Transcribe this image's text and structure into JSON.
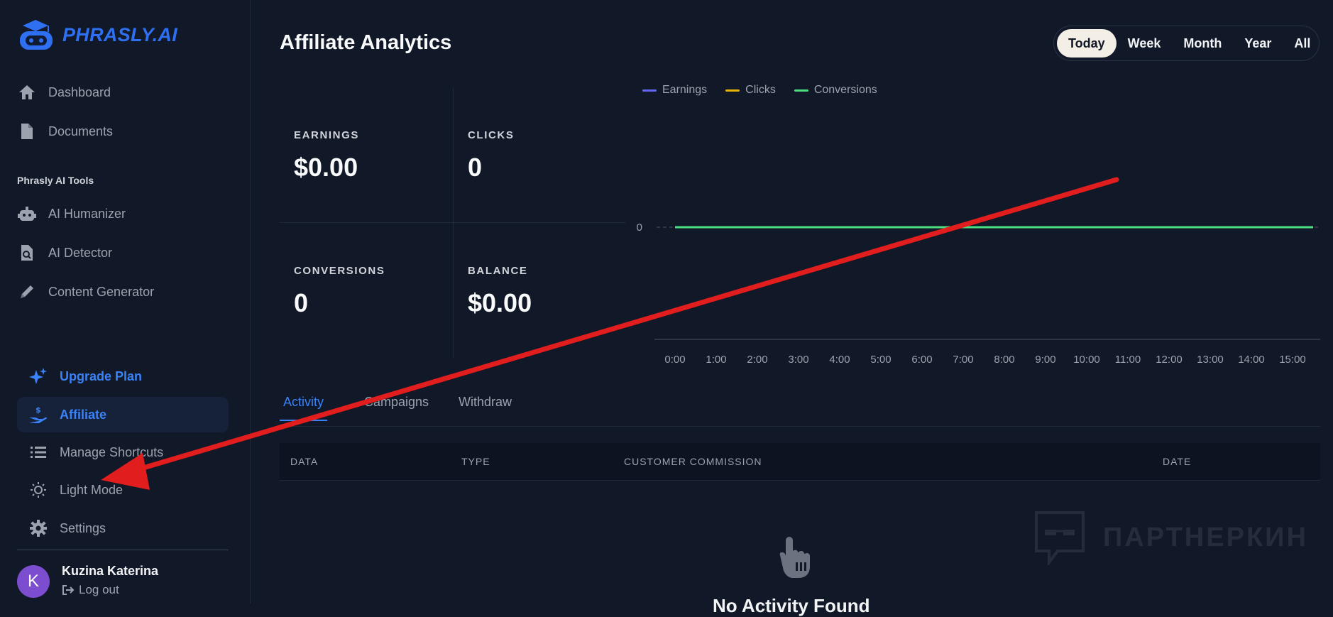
{
  "brand": {
    "name": "PHRASLY.AI",
    "icon": "robot-graduate-logo"
  },
  "sidebar": {
    "top_items": [
      {
        "label": "Dashboard",
        "icon": "home-icon"
      },
      {
        "label": "Documents",
        "icon": "document-icon"
      }
    ],
    "section_title": "Phrasly AI Tools",
    "tools": [
      {
        "label": "AI Humanizer",
        "icon": "robot-icon"
      },
      {
        "label": "AI Detector",
        "icon": "file-search-icon"
      },
      {
        "label": "Content Generator",
        "icon": "pencil-icon"
      }
    ],
    "bottom_items": [
      {
        "label": "Upgrade Plan",
        "icon": "sparkles-icon"
      },
      {
        "label": "Affiliate",
        "icon": "hand-dollar-icon"
      },
      {
        "label": "Manage Shortcuts",
        "icon": "list-icon"
      },
      {
        "label": "Light Mode",
        "icon": "sun-icon"
      },
      {
        "label": "Settings",
        "icon": "gear-icon"
      }
    ],
    "user": {
      "initial": "K",
      "name": "Kuzina Katerina",
      "logout": "Log out"
    }
  },
  "header": {
    "title": "Affiliate Analytics",
    "ranges": [
      "Today",
      "Week",
      "Month",
      "Year",
      "All"
    ],
    "active_range": "Today"
  },
  "stats": {
    "earnings": {
      "label": "EARNINGS",
      "value": "$0.00"
    },
    "clicks": {
      "label": "CLICKS",
      "value": "0"
    },
    "conversions": {
      "label": "CONVERSIONS",
      "value": "0"
    },
    "balance": {
      "label": "BALANCE",
      "value": "$0.00"
    }
  },
  "chart_data": {
    "type": "line",
    "x": [
      "0:00",
      "1:00",
      "2:00",
      "3:00",
      "4:00",
      "5:00",
      "6:00",
      "7:00",
      "8:00",
      "9:00",
      "10:00",
      "11:00",
      "12:00",
      "13:00",
      "14:00",
      "15:00"
    ],
    "series": [
      {
        "name": "Earnings",
        "color": "#6366f1",
        "values": [
          0,
          0,
          0,
          0,
          0,
          0,
          0,
          0,
          0,
          0,
          0,
          0,
          0,
          0,
          0,
          0
        ]
      },
      {
        "name": "Clicks",
        "color": "#eab308",
        "values": [
          0,
          0,
          0,
          0,
          0,
          0,
          0,
          0,
          0,
          0,
          0,
          0,
          0,
          0,
          0,
          0
        ]
      },
      {
        "name": "Conversions",
        "color": "#4ade80",
        "values": [
          0,
          0,
          0,
          0,
          0,
          0,
          0,
          0,
          0,
          0,
          0,
          0,
          0,
          0,
          0,
          0
        ]
      }
    ],
    "y_ticks": [
      "0"
    ],
    "legend": "top-left"
  },
  "tabs": [
    "Activity",
    "Campaigns",
    "Withdraw"
  ],
  "active_tab": "Activity",
  "table": {
    "columns": [
      "DATA",
      "TYPE",
      "CUSTOMER COMMISSION",
      "DATE"
    ]
  },
  "empty_state": {
    "text": "No Activity Found",
    "icon": "hand-pointer-icon"
  },
  "watermark": {
    "text": "ПАРТНЕРКИН",
    "icon": "speech-bubble-glasses-icon"
  },
  "annotation": {
    "color": "#e11d1d",
    "icon": "red-arrow"
  }
}
